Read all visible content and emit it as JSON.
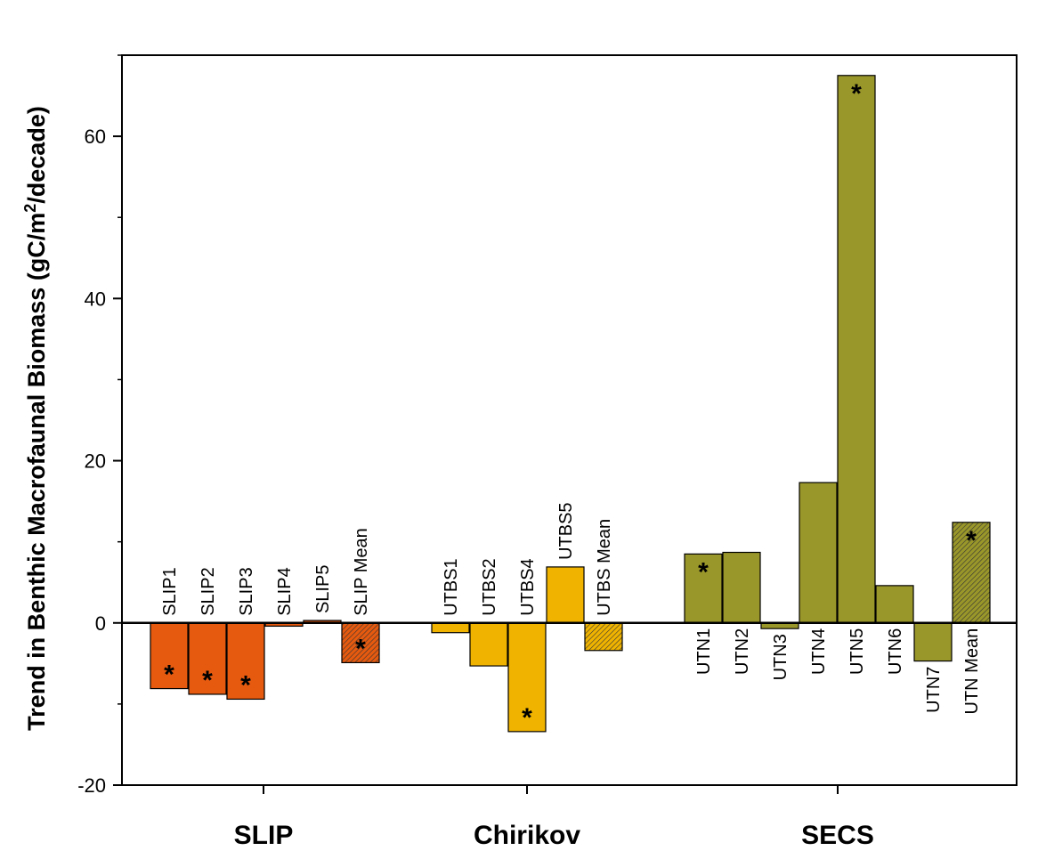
{
  "chart_data": {
    "type": "bar",
    "ylabel_parts": [
      "Trend in Benthic Macrofaunal Biomass (gC/m",
      "2",
      "/decade)"
    ],
    "ylim": [
      -20,
      70
    ],
    "yticks": [
      -20,
      0,
      20,
      40,
      60
    ],
    "grid": false,
    "significance_marker": "*",
    "groups": [
      {
        "name": "SLIP",
        "color": "#e65a0f",
        "bars": [
          {
            "label": "SLIP1",
            "value": -8.1,
            "significant": true,
            "mean": false
          },
          {
            "label": "SLIP2",
            "value": -8.8,
            "significant": true,
            "mean": false
          },
          {
            "label": "SLIP3",
            "value": -9.4,
            "significant": true,
            "mean": false
          },
          {
            "label": "SLIP4",
            "value": -0.4,
            "significant": false,
            "mean": false
          },
          {
            "label": "SLIP5",
            "value": 0.3,
            "significant": false,
            "mean": false
          },
          {
            "label": "SLIP Mean",
            "value": -4.9,
            "significant": true,
            "mean": true
          }
        ]
      },
      {
        "name": "Chirikov",
        "color": "#f0b400",
        "bars": [
          {
            "label": "UTBS1",
            "value": -1.2,
            "significant": false,
            "mean": false
          },
          {
            "label": "UTBS2",
            "value": -5.3,
            "significant": false,
            "mean": false
          },
          {
            "label": "UTBS4",
            "value": -13.4,
            "significant": true,
            "mean": false
          },
          {
            "label": "UTBS5",
            "value": 6.9,
            "significant": false,
            "mean": false
          },
          {
            "label": "UTBS Mean",
            "value": -3.4,
            "significant": false,
            "mean": true
          }
        ]
      },
      {
        "name": "SECS",
        "color": "#9a972a",
        "bars": [
          {
            "label": "UTN1",
            "value": 8.5,
            "significant": true,
            "mean": false
          },
          {
            "label": "UTN2",
            "value": 8.7,
            "significant": false,
            "mean": false
          },
          {
            "label": "UTN3",
            "value": -0.7,
            "significant": false,
            "mean": false
          },
          {
            "label": "UTN4",
            "value": 17.3,
            "significant": false,
            "mean": false
          },
          {
            "label": "UTN5",
            "value": 67.5,
            "significant": true,
            "mean": false
          },
          {
            "label": "UTN6",
            "value": 4.6,
            "significant": false,
            "mean": false
          },
          {
            "label": "UTN7",
            "value": -4.7,
            "significant": false,
            "mean": false
          },
          {
            "label": "UTN Mean",
            "value": 12.4,
            "significant": true,
            "mean": true
          }
        ]
      }
    ]
  }
}
